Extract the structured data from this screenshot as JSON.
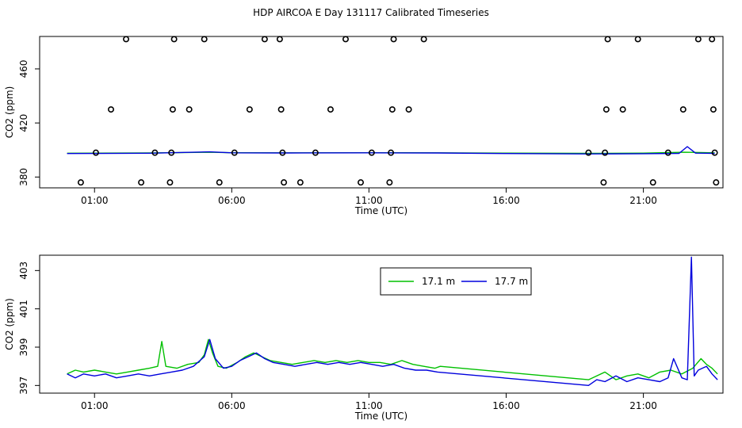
{
  "title": "HDP AIRCOA E  Day 131117  Calibrated Timeseries",
  "colors": {
    "green": "#00c000",
    "blue": "#0000dd",
    "axis": "#000000"
  },
  "chart_data": [
    {
      "type": "line",
      "name": "top-panel",
      "xlabel": "Time (UTC)",
      "ylabel": "CO2 (ppm)",
      "xlim": [
        -1.0,
        23.9
      ],
      "ylim": [
        372,
        484
      ],
      "x_ticks": [
        1,
        6,
        11,
        16,
        21
      ],
      "x_tick_labels": [
        "01:00",
        "06:00",
        "11:00",
        "16:00",
        "21:00"
      ],
      "y_ticks": [
        380,
        420,
        460
      ],
      "y_tick_labels": [
        "380",
        "420",
        "460"
      ],
      "markers": [
        {
          "x": 0.5,
          "y": 376
        },
        {
          "x": 1.05,
          "y": 398
        },
        {
          "x": 1.6,
          "y": 430
        },
        {
          "x": 2.15,
          "y": 482
        },
        {
          "x": 2.7,
          "y": 376
        },
        {
          "x": 3.2,
          "y": 398
        },
        {
          "x": 3.75,
          "y": 376
        },
        {
          "x": 3.8,
          "y": 398
        },
        {
          "x": 3.85,
          "y": 430
        },
        {
          "x": 3.9,
          "y": 482
        },
        {
          "x": 4.45,
          "y": 430
        },
        {
          "x": 5.0,
          "y": 482
        },
        {
          "x": 5.55,
          "y": 376
        },
        {
          "x": 6.1,
          "y": 398
        },
        {
          "x": 6.65,
          "y": 430
        },
        {
          "x": 7.2,
          "y": 482
        },
        {
          "x": 7.75,
          "y": 482
        },
        {
          "x": 7.8,
          "y": 430
        },
        {
          "x": 7.85,
          "y": 398
        },
        {
          "x": 7.9,
          "y": 376
        },
        {
          "x": 8.5,
          "y": 376
        },
        {
          "x": 9.05,
          "y": 398
        },
        {
          "x": 9.6,
          "y": 430
        },
        {
          "x": 10.15,
          "y": 482
        },
        {
          "x": 10.7,
          "y": 376
        },
        {
          "x": 11.1,
          "y": 398
        },
        {
          "x": 11.75,
          "y": 376
        },
        {
          "x": 11.8,
          "y": 398
        },
        {
          "x": 11.85,
          "y": 430
        },
        {
          "x": 11.9,
          "y": 482
        },
        {
          "x": 12.45,
          "y": 430
        },
        {
          "x": 13.0,
          "y": 482
        },
        {
          "x": 19.0,
          "y": 398
        },
        {
          "x": 19.55,
          "y": 376
        },
        {
          "x": 19.6,
          "y": 398
        },
        {
          "x": 19.65,
          "y": 430
        },
        {
          "x": 19.7,
          "y": 482
        },
        {
          "x": 20.25,
          "y": 430
        },
        {
          "x": 20.8,
          "y": 482
        },
        {
          "x": 21.35,
          "y": 376
        },
        {
          "x": 21.9,
          "y": 398
        },
        {
          "x": 22.45,
          "y": 430
        },
        {
          "x": 23.0,
          "y": 482
        },
        {
          "x": 23.5,
          "y": 482
        },
        {
          "x": 23.55,
          "y": 430
        },
        {
          "x": 23.6,
          "y": 398
        },
        {
          "x": 23.65,
          "y": 376
        }
      ],
      "series": [
        {
          "color": "green",
          "x": [
            0.0,
            3.0,
            5.2,
            6.0,
            8.0,
            11.0,
            13.5,
            16.0,
            19.0,
            21.0,
            22.5,
            23.6
          ],
          "y": [
            397.6,
            397.8,
            398.3,
            398.0,
            397.9,
            398.0,
            397.9,
            397.7,
            397.5,
            397.7,
            398.3,
            397.9
          ]
        },
        {
          "color": "blue",
          "x": [
            0.0,
            3.0,
            5.2,
            6.0,
            8.0,
            11.0,
            13.5,
            16.0,
            19.0,
            21.0,
            22.3,
            22.6,
            22.9,
            23.6
          ],
          "y": [
            397.4,
            397.6,
            398.6,
            397.9,
            397.8,
            397.9,
            397.8,
            397.4,
            397.1,
            397.3,
            397.5,
            402.5,
            397.7,
            397.5
          ]
        }
      ]
    },
    {
      "type": "line",
      "name": "bottom-panel",
      "xlabel": "Time (UTC)",
      "ylabel": "CO2 (ppm)",
      "xlim": [
        -1.0,
        23.9
      ],
      "ylim": [
        396.6,
        403.8
      ],
      "x_ticks": [
        1,
        6,
        11,
        16,
        21
      ],
      "x_tick_labels": [
        "01:00",
        "06:00",
        "11:00",
        "16:00",
        "21:00"
      ],
      "y_ticks": [
        397,
        399,
        401,
        403
      ],
      "y_tick_labels": [
        "397",
        "399",
        "401",
        "403"
      ],
      "legend_position": "top-center",
      "series": [
        {
          "name": "17.1 m",
          "color": "green",
          "x": [
            0.0,
            0.3,
            0.6,
            1.0,
            1.4,
            1.8,
            2.2,
            2.6,
            3.0,
            3.3,
            3.45,
            3.6,
            4.0,
            4.4,
            4.8,
            5.0,
            5.15,
            5.3,
            5.5,
            5.8,
            6.2,
            6.5,
            6.8,
            7.1,
            7.4,
            7.8,
            8.2,
            8.6,
            9.0,
            9.4,
            9.8,
            10.2,
            10.6,
            11.0,
            11.4,
            11.8,
            12.2,
            12.6,
            13.0,
            13.4,
            13.6,
            19.0,
            19.3,
            19.6,
            20.0,
            20.4,
            20.8,
            21.2,
            21.6,
            22.0,
            22.4,
            22.8,
            23.1,
            23.3,
            23.5,
            23.7
          ],
          "y": [
            397.6,
            397.8,
            397.7,
            397.8,
            397.7,
            397.6,
            397.7,
            397.8,
            397.9,
            398.0,
            399.3,
            398.0,
            397.9,
            398.1,
            398.2,
            398.6,
            399.4,
            398.7,
            398.0,
            397.9,
            398.2,
            398.5,
            398.7,
            398.5,
            398.3,
            398.2,
            398.1,
            398.2,
            398.3,
            398.2,
            398.3,
            398.2,
            398.3,
            398.2,
            398.2,
            398.1,
            398.3,
            398.1,
            398.0,
            397.9,
            398.0,
            397.3,
            397.5,
            397.7,
            397.3,
            397.5,
            397.6,
            397.4,
            397.7,
            397.8,
            397.6,
            397.9,
            398.4,
            398.1,
            397.9,
            397.6
          ]
        },
        {
          "name": "17.7 m",
          "color": "blue",
          "x": [
            0.0,
            0.3,
            0.6,
            1.0,
            1.4,
            1.8,
            2.2,
            2.6,
            3.0,
            3.4,
            3.8,
            4.2,
            4.6,
            5.0,
            5.2,
            5.4,
            5.7,
            6.0,
            6.3,
            6.6,
            6.9,
            7.2,
            7.5,
            7.9,
            8.3,
            8.7,
            9.1,
            9.5,
            9.9,
            10.3,
            10.7,
            11.1,
            11.5,
            11.9,
            12.3,
            12.7,
            13.1,
            13.5,
            19.0,
            19.3,
            19.6,
            20.0,
            20.4,
            20.8,
            21.2,
            21.6,
            21.9,
            22.1,
            22.4,
            22.6,
            22.75,
            22.85,
            23.0,
            23.3,
            23.5,
            23.7
          ],
          "y": [
            397.6,
            397.4,
            397.6,
            397.5,
            397.6,
            397.4,
            397.5,
            397.6,
            397.5,
            397.6,
            397.7,
            397.8,
            398.0,
            398.5,
            399.4,
            398.4,
            397.9,
            398.0,
            398.3,
            398.5,
            398.7,
            398.4,
            398.2,
            398.1,
            398.0,
            398.1,
            398.2,
            398.1,
            398.2,
            398.1,
            398.2,
            398.1,
            398.0,
            398.1,
            397.9,
            397.8,
            397.8,
            397.7,
            397.0,
            397.3,
            397.2,
            397.5,
            397.2,
            397.4,
            397.3,
            397.2,
            397.4,
            398.4,
            397.4,
            397.3,
            403.7,
            397.5,
            397.8,
            398.0,
            397.6,
            397.3
          ]
        }
      ]
    }
  ]
}
